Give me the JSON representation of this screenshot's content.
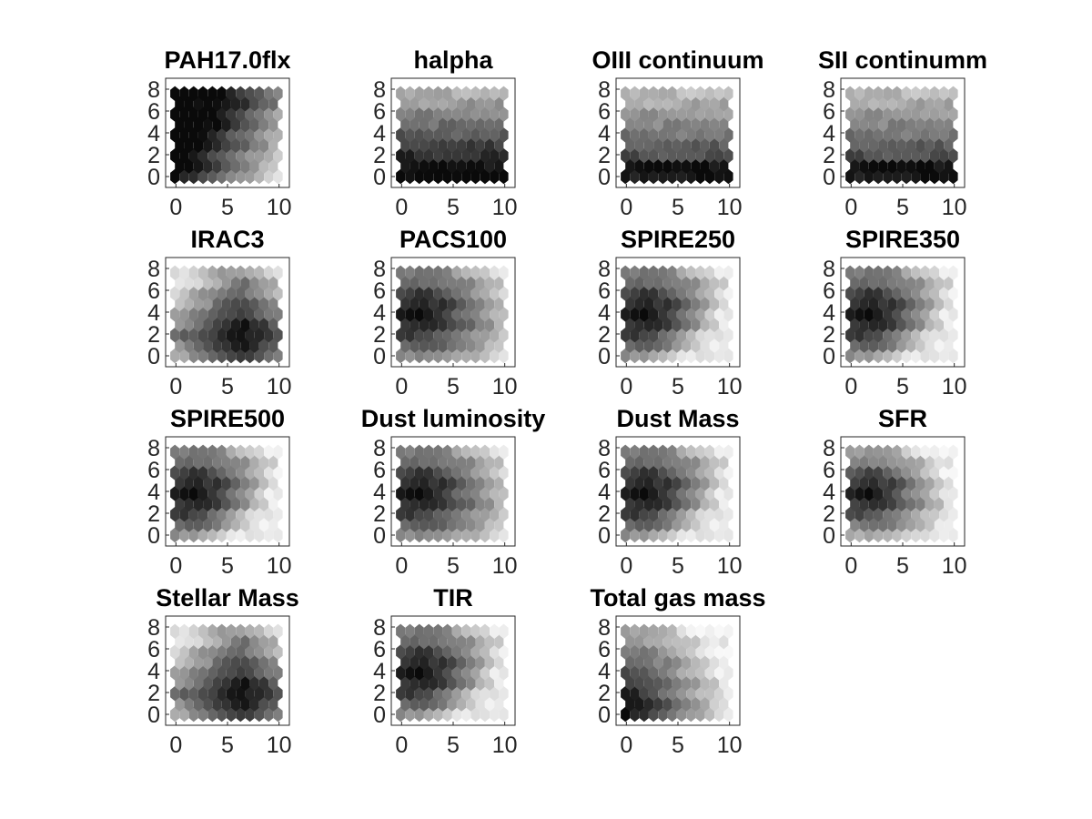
{
  "chart_data": {
    "type": "heatmap",
    "layout": "4x4 grid of hexagonal heatmaps (13x9 hexagon lattice)",
    "colormap": "grayscale (black = high, white = low)",
    "grid": false,
    "x_ticks": [
      0,
      5,
      10
    ],
    "y_ticks": [
      0,
      2,
      4,
      6,
      8
    ],
    "xlim": [
      -1,
      11
    ],
    "ylim": [
      -1,
      9
    ],
    "panels": [
      {
        "title": "PAH17.0flx",
        "pattern": "tl_dark_right_light",
        "shading": 0.25
      },
      {
        "title": "halpha",
        "pattern": "bottom_dark",
        "shading": 0.45
      },
      {
        "title": "OIII continuum",
        "pattern": "bottom_band_dark",
        "shading": 0.65
      },
      {
        "title": "SII continumm",
        "pattern": "bottom_band_dark",
        "shading": 0.6
      },
      {
        "title": "IRAC3",
        "pattern": "center_dark",
        "shading": 0.22
      },
      {
        "title": "PACS100",
        "pattern": "left_mid_dark",
        "shading": 0.3
      },
      {
        "title": "SPIRE250",
        "pattern": "left_mid_dark_br_light",
        "shading": 0.4
      },
      {
        "title": "SPIRE350",
        "pattern": "left_mid_dark_br_light",
        "shading": 0.45
      },
      {
        "title": "SPIRE500",
        "pattern": "left_mid_dark_br_light",
        "shading": 0.5
      },
      {
        "title": "Dust luminosity",
        "pattern": "left_mid_dark",
        "shading": 0.38
      },
      {
        "title": "Dust Mass",
        "pattern": "left_mid_dark_br_light",
        "shading": 0.42
      },
      {
        "title": "SFR",
        "pattern": "left_mid_dark_right_light",
        "shading": 0.55
      },
      {
        "title": "Stellar Mass",
        "pattern": "center_dark",
        "shading": 0.25
      },
      {
        "title": "TIR",
        "pattern": "left_mid_dark_br_light",
        "shading": 0.4
      },
      {
        "title": "Total gas mass",
        "pattern": "bl_dark_right_light",
        "shading": 0.6
      }
    ]
  }
}
